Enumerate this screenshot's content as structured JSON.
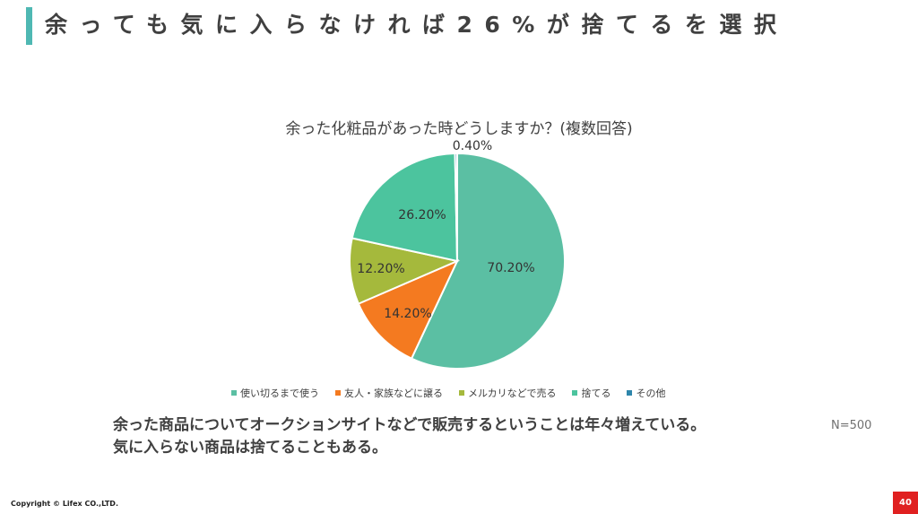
{
  "slide": {
    "title": "余っても気に入らなければ26%が捨てるを選択",
    "body_lines": [
      "余った商品についてオークションサイトなどで販売するということは年々増えている。",
      "気に入らない商品は捨てることもある。"
    ],
    "sample_size": "N=500",
    "copyright": "Copyright © Lifex CO.,LTD.",
    "page_number": "40"
  },
  "colors": {
    "accent": "#4fb8b3",
    "page_badge": "#e02020"
  },
  "chart_data": {
    "type": "pie",
    "title": "余った化粧品があった時どうしますか？(複数回答)",
    "legend_position": "bottom",
    "slices": [
      {
        "label": "使い切るまで使う",
        "value": 70.2,
        "display": "70.20%",
        "color": "#5bbfa3"
      },
      {
        "label": "友人・家族などに譲る",
        "value": 14.2,
        "display": "14.20%",
        "color": "#f47a20"
      },
      {
        "label": "メルカリなどで売る",
        "value": 12.2,
        "display": "12.20%",
        "color": "#a5b93c"
      },
      {
        "label": "捨てる",
        "value": 26.2,
        "display": "26.20%",
        "color": "#4cc49e"
      },
      {
        "label": "その他",
        "value": 0.4,
        "display": "0.40%",
        "color": "#2e86ab"
      }
    ]
  }
}
